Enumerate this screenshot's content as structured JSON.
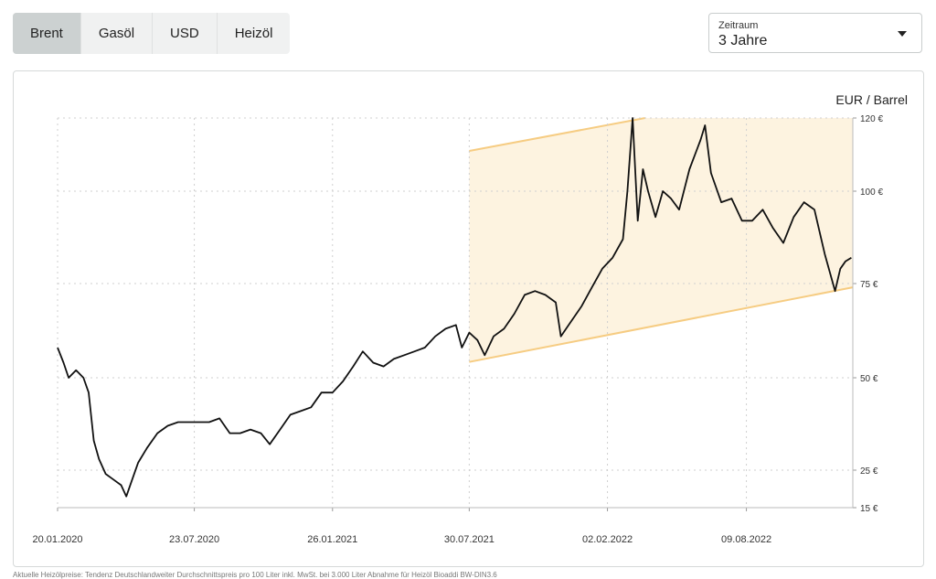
{
  "tabs": [
    {
      "label": "Brent",
      "active": true
    },
    {
      "label": "Gasöl",
      "active": false
    },
    {
      "label": "USD",
      "active": false
    },
    {
      "label": "Heizöl",
      "active": false
    }
  ],
  "period_select": {
    "label": "Zeitraum",
    "value": "3 Jahre",
    "icon": "caret-down-icon"
  },
  "colors": {
    "line": "#111111",
    "band_fill": "#fdf3e0",
    "band_edge": "#f6cc82",
    "grid": "#cfcfcf",
    "active_tab": "#ccd1d1",
    "tab_bg": "#f0f1f1"
  },
  "chart_data": {
    "type": "line",
    "unit_label": "EUR / Barrel",
    "y_axis_position": "right",
    "grid": true,
    "ylim": [
      15,
      120
    ],
    "yticks": [
      {
        "value": 120,
        "label": "120 €"
      },
      {
        "value": 100,
        "label": "100 €"
      },
      {
        "value": 75,
        "label": "75 €"
      },
      {
        "value": 50,
        "label": "50 €"
      },
      {
        "value": 25,
        "label": "25 €"
      },
      {
        "value": 15,
        "label": "15 €"
      }
    ],
    "xlim": [
      "2020-01-20",
      "2022-12-31"
    ],
    "xticks": [
      {
        "date": "2020-01-20",
        "label": "20.01.2020"
      },
      {
        "date": "2020-07-23",
        "label": "23.07.2020"
      },
      {
        "date": "2021-01-26",
        "label": "26.01.2021"
      },
      {
        "date": "2021-07-30",
        "label": "30.07.2021"
      },
      {
        "date": "2022-02-02",
        "label": "02.02.2022"
      },
      {
        "date": "2022-08-09",
        "label": "09.08.2022"
      }
    ],
    "trend_channel": {
      "upper": [
        {
          "date": "2021-07-30",
          "y": 111
        },
        {
          "date": "2022-03-25",
          "y": 120
        }
      ],
      "lower": [
        {
          "date": "2021-08-20",
          "y": 55
        },
        {
          "date": "2022-12-31",
          "y": 74
        }
      ]
    },
    "series": [
      {
        "points": [
          [
            "2020-01-20",
            58
          ],
          [
            "2020-01-28",
            54
          ],
          [
            "2020-02-04",
            50
          ],
          [
            "2020-02-14",
            52
          ],
          [
            "2020-02-24",
            50
          ],
          [
            "2020-03-02",
            46
          ],
          [
            "2020-03-09",
            33
          ],
          [
            "2020-03-16",
            28
          ],
          [
            "2020-03-25",
            24
          ],
          [
            "2020-04-01",
            23
          ],
          [
            "2020-04-08",
            22
          ],
          [
            "2020-04-15",
            21
          ],
          [
            "2020-04-22",
            18
          ],
          [
            "2020-04-29",
            22
          ],
          [
            "2020-05-08",
            27
          ],
          [
            "2020-05-20",
            31
          ],
          [
            "2020-06-03",
            35
          ],
          [
            "2020-06-17",
            37
          ],
          [
            "2020-07-01",
            38
          ],
          [
            "2020-07-15",
            38
          ],
          [
            "2020-07-29",
            38
          ],
          [
            "2020-08-12",
            38
          ],
          [
            "2020-08-26",
            39
          ],
          [
            "2020-09-09",
            35
          ],
          [
            "2020-09-23",
            35
          ],
          [
            "2020-10-07",
            36
          ],
          [
            "2020-10-21",
            35
          ],
          [
            "2020-11-02",
            32
          ],
          [
            "2020-11-16",
            36
          ],
          [
            "2020-11-30",
            40
          ],
          [
            "2020-12-14",
            41
          ],
          [
            "2020-12-28",
            42
          ],
          [
            "2021-01-11",
            46
          ],
          [
            "2021-01-26",
            46
          ],
          [
            "2021-02-09",
            49
          ],
          [
            "2021-02-23",
            53
          ],
          [
            "2021-03-08",
            57
          ],
          [
            "2021-03-22",
            54
          ],
          [
            "2021-04-05",
            53
          ],
          [
            "2021-04-19",
            55
          ],
          [
            "2021-05-03",
            56
          ],
          [
            "2021-05-17",
            57
          ],
          [
            "2021-05-31",
            58
          ],
          [
            "2021-06-14",
            61
          ],
          [
            "2021-06-28",
            63
          ],
          [
            "2021-07-12",
            64
          ],
          [
            "2021-07-20",
            58
          ],
          [
            "2021-07-30",
            62
          ],
          [
            "2021-08-10",
            60
          ],
          [
            "2021-08-20",
            56
          ],
          [
            "2021-09-01",
            61
          ],
          [
            "2021-09-15",
            63
          ],
          [
            "2021-09-29",
            67
          ],
          [
            "2021-10-13",
            72
          ],
          [
            "2021-10-27",
            73
          ],
          [
            "2021-11-10",
            72
          ],
          [
            "2021-11-24",
            70
          ],
          [
            "2021-12-01",
            61
          ],
          [
            "2021-12-15",
            65
          ],
          [
            "2021-12-29",
            69
          ],
          [
            "2022-01-12",
            74
          ],
          [
            "2022-01-26",
            79
          ],
          [
            "2022-02-09",
            82
          ],
          [
            "2022-02-23",
            87
          ],
          [
            "2022-03-01",
            100
          ],
          [
            "2022-03-08",
            120
          ],
          [
            "2022-03-15",
            92
          ],
          [
            "2022-03-22",
            106
          ],
          [
            "2022-03-29",
            100
          ],
          [
            "2022-04-08",
            93
          ],
          [
            "2022-04-18",
            100
          ],
          [
            "2022-04-29",
            98
          ],
          [
            "2022-05-10",
            95
          ],
          [
            "2022-05-24",
            106
          ],
          [
            "2022-06-08",
            114
          ],
          [
            "2022-06-14",
            118
          ],
          [
            "2022-06-22",
            105
          ],
          [
            "2022-07-06",
            97
          ],
          [
            "2022-07-20",
            98
          ],
          [
            "2022-08-03",
            92
          ],
          [
            "2022-08-17",
            92
          ],
          [
            "2022-08-31",
            95
          ],
          [
            "2022-09-14",
            90
          ],
          [
            "2022-09-28",
            86
          ],
          [
            "2022-10-12",
            93
          ],
          [
            "2022-10-26",
            97
          ],
          [
            "2022-11-09",
            95
          ],
          [
            "2022-11-23",
            83
          ],
          [
            "2022-12-07",
            73
          ],
          [
            "2022-12-14",
            79
          ],
          [
            "2022-12-21",
            81
          ],
          [
            "2022-12-29",
            82
          ]
        ]
      }
    ]
  },
  "footnote": "Aktuelle Heizölpreise: Tendenz Deutschlandweiter Durchschnittspreis pro 100 Liter inkl. MwSt. bei 3.000 Liter Abnahme für Heizöl Bioaddi BW-DIN3.6"
}
